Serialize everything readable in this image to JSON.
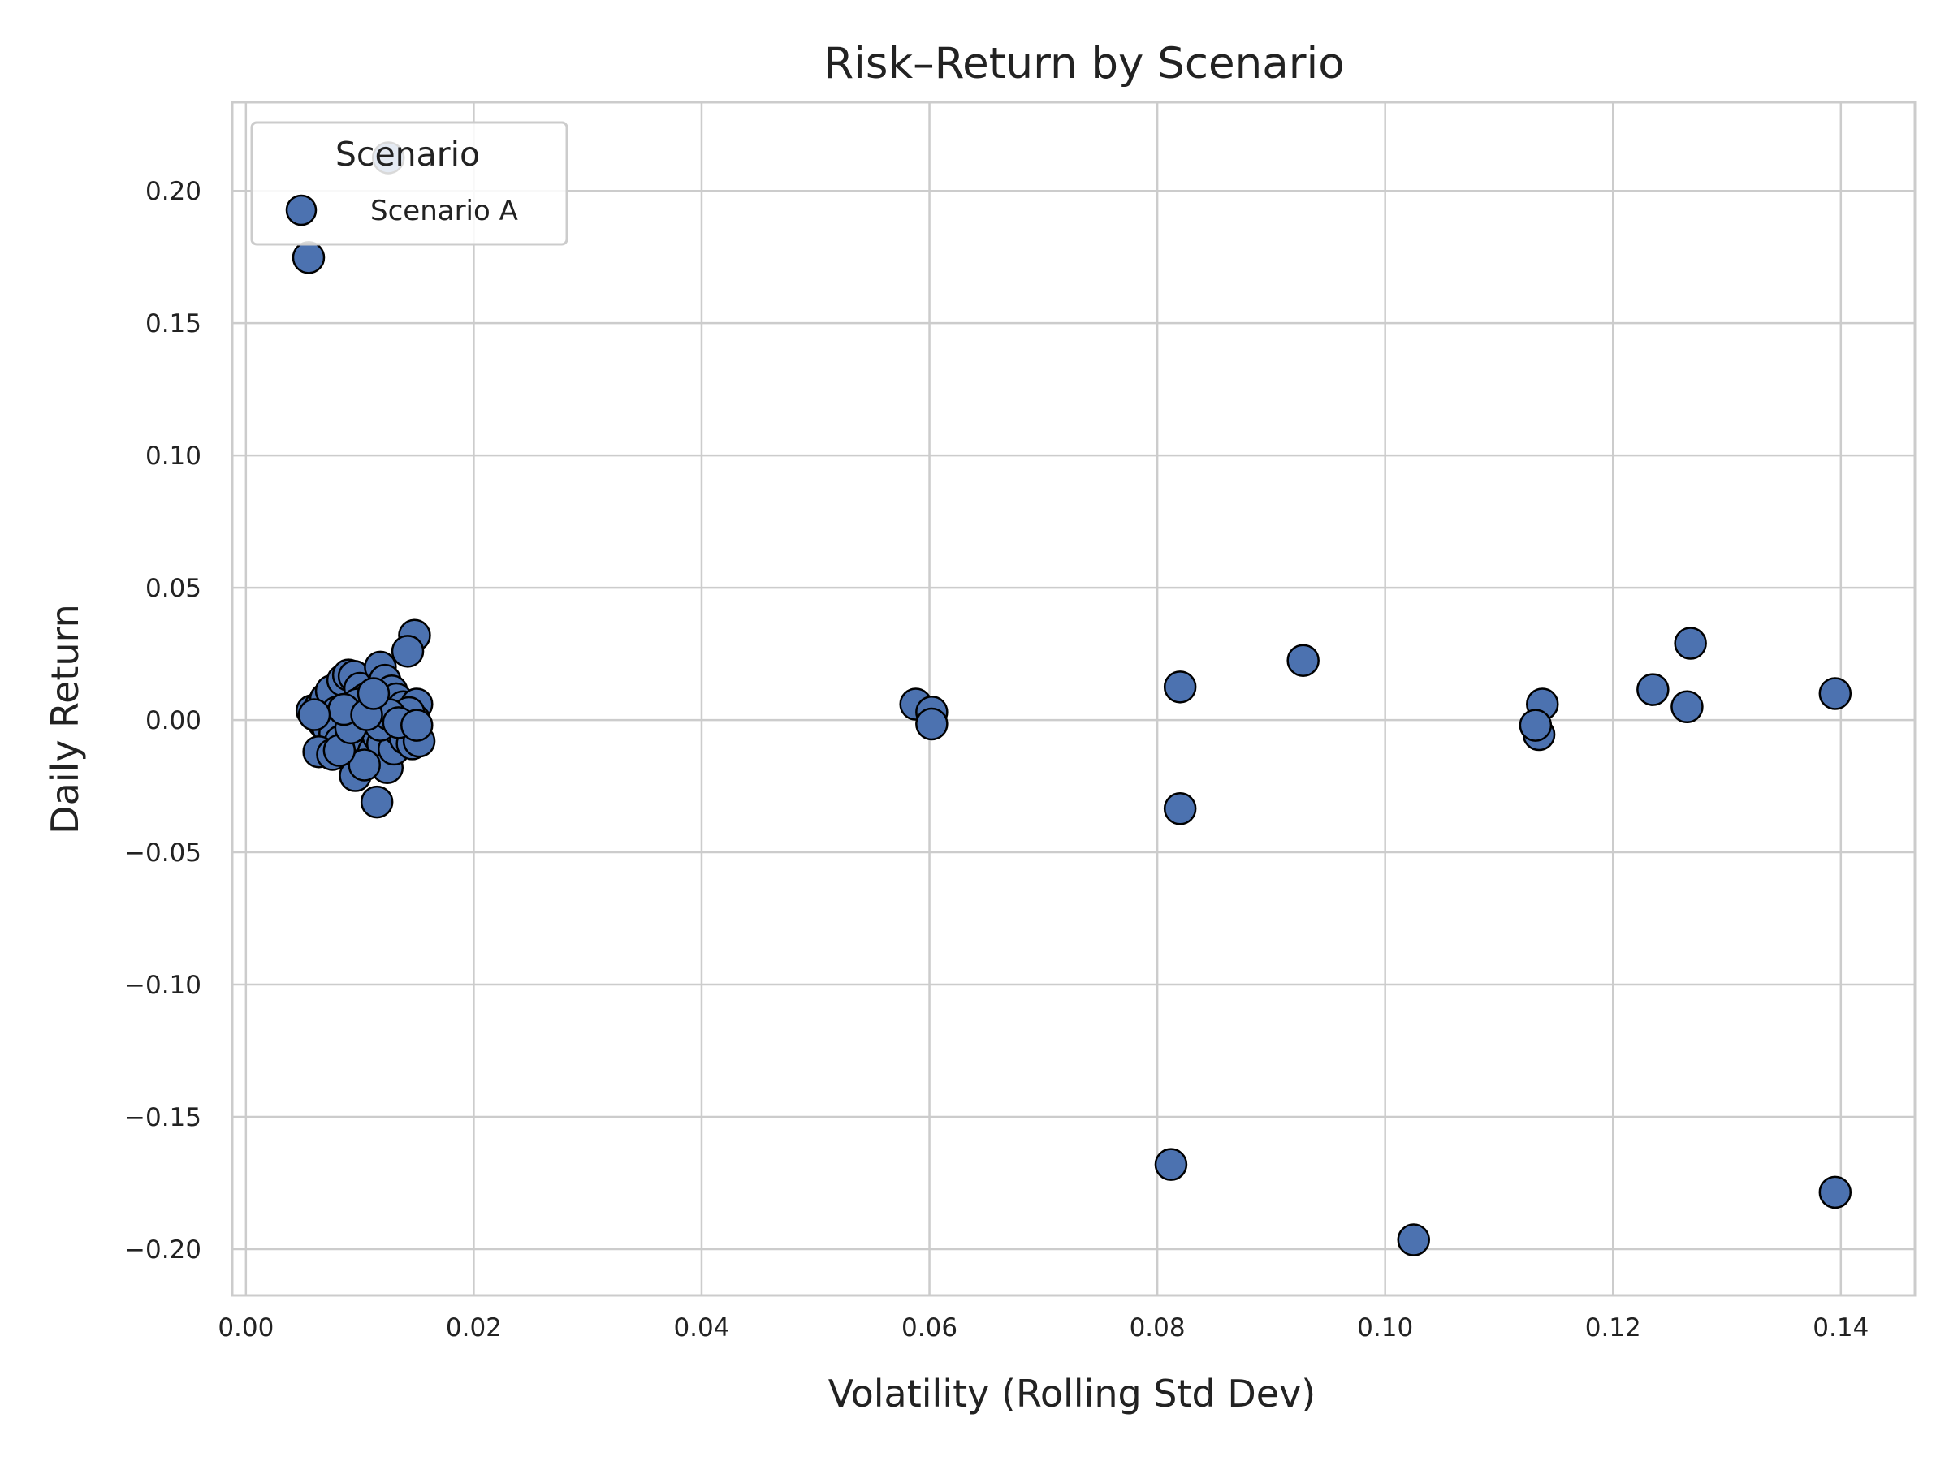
{
  "chart_data": {
    "type": "scatter",
    "title": "Risk–Return by Scenario",
    "xlabel": "Volatility (Rolling Std Dev)",
    "ylabel": "Daily Return",
    "xlim": [
      -0.0012,
      0.1465
    ],
    "ylim": [
      -0.2175,
      0.2335
    ],
    "xticks": [
      0.0,
      0.02,
      0.04,
      0.06,
      0.08,
      0.1,
      0.12,
      0.14
    ],
    "xtick_labels": [
      "0.00",
      "0.02",
      "0.04",
      "0.06",
      "0.08",
      "0.10",
      "0.12",
      "0.14"
    ],
    "yticks": [
      -0.2,
      -0.15,
      -0.1,
      -0.05,
      0.0,
      0.05,
      0.1,
      0.15,
      0.2
    ],
    "ytick_labels": [
      "−0.20",
      "−0.15",
      "−0.10",
      "−0.05",
      "0.00",
      "0.05",
      "0.10",
      "0.15",
      "0.20"
    ],
    "grid": true,
    "legend": {
      "title": "Scenario",
      "placement": "top-left"
    },
    "colors": {
      "marker_fill": "#4c72b0",
      "marker_edge": "#000000",
      "grid": "#cccccc",
      "frame": "#cccccc"
    },
    "series": [
      {
        "name": "Scenario A",
        "points": [
          [
            0.0125,
            0.2125
          ],
          [
            0.0055,
            0.1748
          ],
          [
            0.0148,
            0.032
          ],
          [
            0.0142,
            0.026
          ],
          [
            0.0058,
            0.0035
          ],
          [
            0.0065,
            0.005
          ],
          [
            0.007,
            0.008
          ],
          [
            0.0075,
            0.011
          ],
          [
            0.008,
            0.003
          ],
          [
            0.0085,
            0.015
          ],
          [
            0.009,
            0.017
          ],
          [
            0.0095,
            0.0165
          ],
          [
            0.01,
            0.012
          ],
          [
            0.0105,
            0.008
          ],
          [
            0.011,
            0.005
          ],
          [
            0.0118,
            0.02
          ],
          [
            0.0122,
            0.015
          ],
          [
            0.0128,
            0.011
          ],
          [
            0.0132,
            0.008
          ],
          [
            0.0138,
            0.005
          ],
          [
            0.0145,
            0.003
          ],
          [
            0.015,
            0.006
          ],
          [
            0.0148,
            0.0
          ],
          [
            0.0143,
            0.0028
          ],
          [
            0.0068,
            -0.001
          ],
          [
            0.0072,
            -0.003
          ],
          [
            0.0078,
            -0.005
          ],
          [
            0.0083,
            -0.008
          ],
          [
            0.0088,
            -0.01
          ],
          [
            0.0093,
            -0.006
          ],
          [
            0.0098,
            0.006
          ],
          [
            0.0102,
            -0.002
          ],
          [
            0.0108,
            -0.015
          ],
          [
            0.0112,
            -0.012
          ],
          [
            0.0116,
            -0.006
          ],
          [
            0.012,
            -0.009
          ],
          [
            0.0124,
            -0.018
          ],
          [
            0.013,
            -0.011
          ],
          [
            0.0135,
            -0.004
          ],
          [
            0.014,
            -0.007
          ],
          [
            0.0146,
            -0.009
          ],
          [
            0.0152,
            -0.008
          ],
          [
            0.0064,
            -0.012
          ],
          [
            0.0076,
            -0.013
          ],
          [
            0.0096,
            -0.021
          ],
          [
            0.0104,
            -0.017
          ],
          [
            0.0115,
            -0.031
          ],
          [
            0.0082,
            -0.0115
          ],
          [
            0.0092,
            -0.003
          ],
          [
            0.0118,
            -0.002
          ],
          [
            0.0126,
            0.002
          ],
          [
            0.0134,
            -0.001
          ],
          [
            0.0086,
            0.004
          ],
          [
            0.0106,
            0.002
          ],
          [
            0.006,
            0.002
          ],
          [
            0.015,
            -0.002
          ],
          [
            0.0112,
            0.01
          ],
          [
            0.0588,
            0.006
          ],
          [
            0.0602,
            0.003
          ],
          [
            0.0602,
            -0.0015
          ],
          [
            0.082,
            0.0125
          ],
          [
            0.082,
            -0.0335
          ],
          [
            0.0812,
            -0.168
          ],
          [
            0.0928,
            0.0225
          ],
          [
            0.1025,
            -0.1965
          ],
          [
            0.1138,
            0.006
          ],
          [
            0.1135,
            -0.0055
          ],
          [
            0.1132,
            -0.002
          ],
          [
            0.1235,
            0.0115
          ],
          [
            0.1268,
            0.029
          ],
          [
            0.1265,
            0.005
          ],
          [
            0.1395,
            0.01
          ],
          [
            0.1395,
            -0.1785
          ]
        ]
      }
    ]
  }
}
